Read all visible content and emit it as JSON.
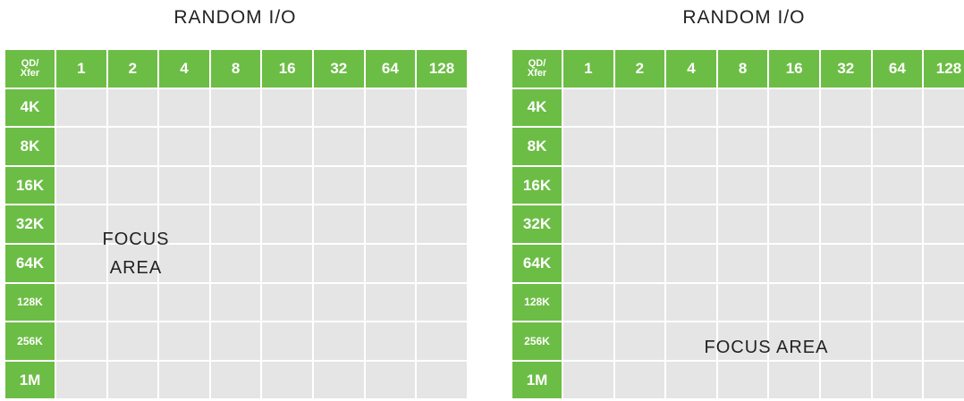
{
  "panels": [
    {
      "title": "RANDOM I/O",
      "corner_label": "QD/ Xfer",
      "columns": [
        "1",
        "2",
        "4",
        "8",
        "16",
        "32",
        "64",
        "128"
      ],
      "rows": [
        "4K",
        "8K",
        "16K",
        "32K",
        "64K",
        "128K",
        "256K",
        "1M"
      ],
      "focus_label": "FOCUS AREA"
    },
    {
      "title": "RANDOM I/O",
      "corner_label": "QD/ Xfer",
      "columns": [
        "1",
        "2",
        "4",
        "8",
        "16",
        "32",
        "64",
        "128"
      ],
      "rows": [
        "4K",
        "8K",
        "16K",
        "32K",
        "64K",
        "128K",
        "256K",
        "1M"
      ],
      "focus_label": "FOCUS AREA"
    }
  ]
}
